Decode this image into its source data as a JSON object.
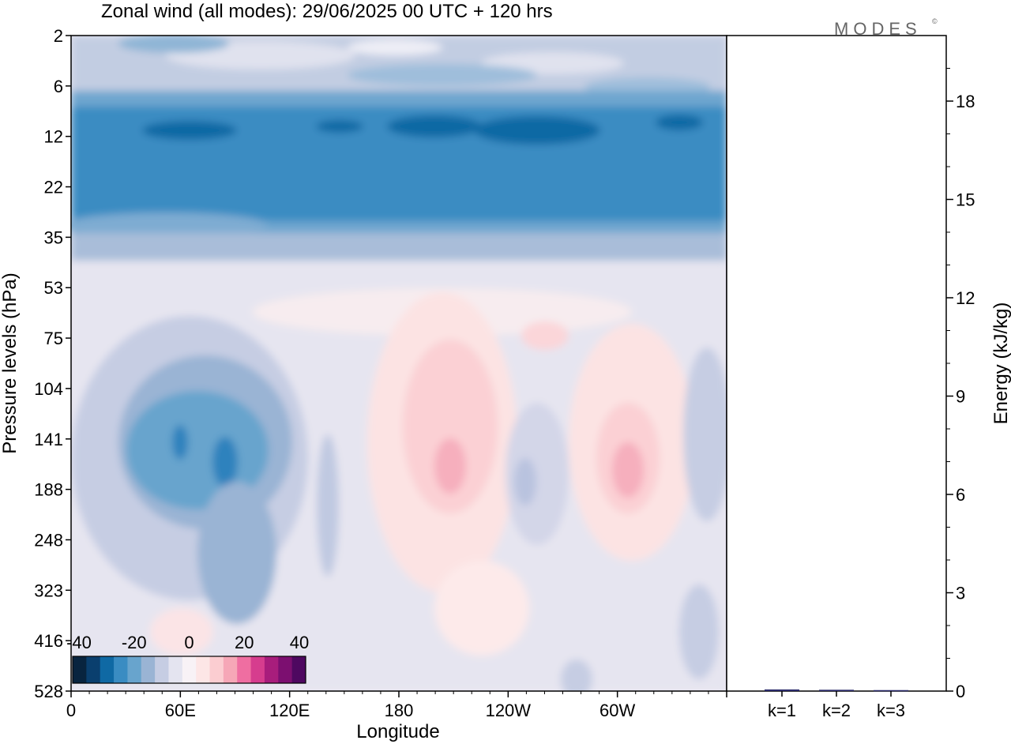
{
  "title": "Zonal wind (all modes):  29/06/2025  00 UTC  + 120 hrs",
  "brand": "MODES",
  "brand_mark": "©",
  "chart_data": [
    {
      "type": "heatmap",
      "title": "Zonal wind (all modes):  29/06/2025  00 UTC  + 120 hrs",
      "xlabel": "Longitude",
      "ylabel": "Pressure levels (hPa)",
      "x_ticks": [
        "0",
        "60E",
        "120E",
        "180",
        "120W",
        "60W"
      ],
      "x_tick_degrees": [
        0,
        60,
        120,
        180,
        240,
        300
      ],
      "x_range_degrees": [
        0,
        360
      ],
      "y_ticks": [
        "2",
        "6",
        "12",
        "22",
        "35",
        "53",
        "75",
        "104",
        "141",
        "188",
        "248",
        "323",
        "416",
        "528"
      ],
      "colorbar": {
        "labels": [
          "-40",
          "-20",
          "0",
          "20",
          "40"
        ],
        "values": [
          -40,
          -20,
          0,
          20,
          40
        ],
        "colors": [
          "#08243f",
          "#0a3f6e",
          "#0f69a4",
          "#3a8cc2",
          "#68a4cd",
          "#9ab4d4",
          "#c6cde3",
          "#e4e4f0",
          "#f8f2f6",
          "#fde6e6",
          "#fbcdd1",
          "#f6a7b7",
          "#ef6ea1",
          "#d63d8e",
          "#a81d7c",
          "#7c0f70",
          "#4e0860"
        ]
      }
    },
    {
      "type": "bar",
      "ylabel": "Energy (kJ/kg)",
      "categories": [
        "k=1",
        "k=2",
        "k=3"
      ],
      "values": [
        0.05,
        0.04,
        0.03
      ],
      "y_ticks": [
        "0",
        "3",
        "6",
        "9",
        "12",
        "15",
        "18"
      ],
      "ylim": [
        0,
        20
      ],
      "bar_color": "#2a2a6a"
    }
  ]
}
